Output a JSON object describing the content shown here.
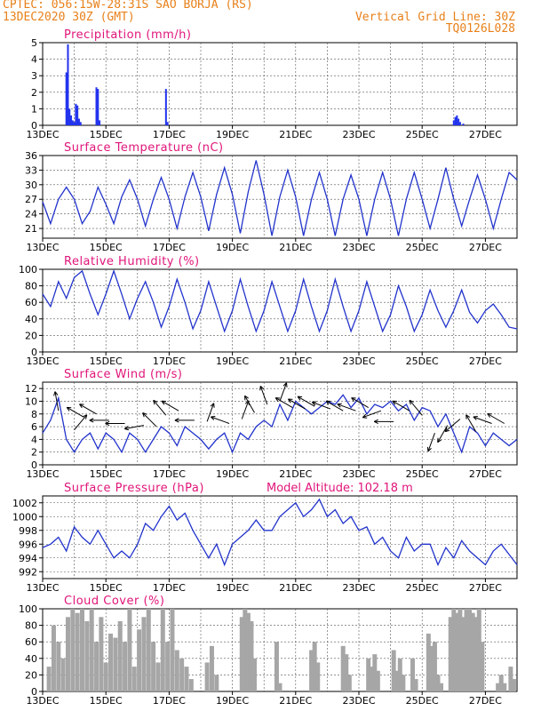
{
  "header": {
    "line1": "CPTEC:   056:15W-28:31S  SAO BORJA (RS)",
    "line2": "13DEC2020 30Z (GMT)",
    "grid_note": "Vertical Grid Line: 30Z",
    "code": "TQ0126L028"
  },
  "model_altitude": "Model Altitude: 102.18 m",
  "colors": {
    "header": "#e8801a",
    "title": "#e0157a",
    "line": "#2233cc",
    "bar": "#2233ee",
    "cloud": "#a6a6a6"
  },
  "chart_data": [
    {
      "type": "bar",
      "title": "Precipitation (mm/h)",
      "ylim": [
        0,
        5
      ],
      "yticks": [
        0,
        1,
        2,
        3,
        4,
        5
      ],
      "x_ticks": [
        "13DEC",
        "15DEC",
        "17DEC",
        "19DEC",
        "21DEC",
        "23DEC",
        "25DEC",
        "27DEC"
      ],
      "x_unit": "day offset from 13DEC",
      "x": [
        0.75,
        0.8,
        0.85,
        0.9,
        0.95,
        1.0,
        1.05,
        1.1,
        1.15,
        1.2,
        1.7,
        1.75,
        1.8,
        3.9,
        3.95,
        13.0,
        13.05,
        13.1,
        13.15,
        13.2,
        13.3
      ],
      "values": [
        3.2,
        4.9,
        1.0,
        0.6,
        0.3,
        0.2,
        1.3,
        1.2,
        0.4,
        0.2,
        2.3,
        2.2,
        0.3,
        2.2,
        0.2,
        0.3,
        0.5,
        0.6,
        0.4,
        0.2,
        0.1
      ]
    },
    {
      "type": "line",
      "title": "Surface Temperature (nC)",
      "ylim": [
        19,
        36
      ],
      "yticks": [
        21,
        24,
        27,
        30,
        33,
        36
      ],
      "x_ticks": [
        "13DEC",
        "15DEC",
        "17DEC",
        "19DEC",
        "21DEC",
        "23DEC",
        "25DEC",
        "27DEC"
      ],
      "x": [
        0,
        0.25,
        0.5,
        0.75,
        1,
        1.25,
        1.5,
        1.75,
        2,
        2.25,
        2.5,
        2.75,
        3,
        3.25,
        3.5,
        3.75,
        4,
        4.25,
        4.5,
        4.75,
        5,
        5.25,
        5.5,
        5.75,
        6,
        6.25,
        6.5,
        6.75,
        7,
        7.25,
        7.5,
        7.75,
        8,
        8.25,
        8.5,
        8.75,
        9,
        9.25,
        9.5,
        9.75,
        10,
        10.25,
        10.5,
        10.75,
        11,
        11.25,
        11.5,
        11.75,
        12,
        12.25,
        12.5,
        12.75,
        13,
        13.25,
        13.5,
        13.75,
        14,
        14.25,
        14.5,
        14.75,
        15
      ],
      "values": [
        26.5,
        22,
        27,
        29.5,
        27,
        22,
        24.5,
        29.5,
        26,
        22,
        27.5,
        31,
        27,
        21.5,
        27,
        31.5,
        27,
        21,
        27.5,
        32.5,
        27.5,
        20.5,
        28,
        33.5,
        28,
        20,
        28.5,
        35,
        28,
        19.5,
        27.5,
        33,
        27.5,
        19.5,
        27,
        32.5,
        27,
        19.5,
        27,
        32,
        27,
        19.5,
        27,
        32.5,
        27,
        19.5,
        27,
        32.5,
        27,
        21,
        27,
        33.5,
        27,
        21.5,
        27,
        32,
        27,
        21,
        27,
        32.5,
        31
      ]
    },
    {
      "type": "line",
      "title": "Relative Humidity (%)",
      "ylim": [
        0,
        100
      ],
      "yticks": [
        0,
        20,
        40,
        60,
        80,
        100
      ],
      "x_ticks": [
        "13DEC",
        "15DEC",
        "17DEC",
        "19DEC",
        "21DEC",
        "23DEC",
        "25DEC",
        "27DEC"
      ],
      "x": [
        0,
        0.25,
        0.5,
        0.75,
        1,
        1.25,
        1.5,
        1.75,
        2,
        2.25,
        2.5,
        2.75,
        3,
        3.25,
        3.5,
        3.75,
        4,
        4.25,
        4.5,
        4.75,
        5,
        5.25,
        5.5,
        5.75,
        6,
        6.25,
        6.5,
        6.75,
        7,
        7.25,
        7.5,
        7.75,
        8,
        8.25,
        8.5,
        8.75,
        9,
        9.25,
        9.5,
        9.75,
        10,
        10.25,
        10.5,
        10.75,
        11,
        11.25,
        11.5,
        11.75,
        12,
        12.25,
        12.5,
        12.75,
        13,
        13.25,
        13.5,
        13.75,
        14,
        14.25,
        14.5,
        14.75,
        15
      ],
      "values": [
        70,
        55,
        85,
        65,
        90,
        98,
        70,
        45,
        70,
        98,
        70,
        40,
        65,
        85,
        60,
        30,
        55,
        88,
        60,
        28,
        50,
        85,
        55,
        25,
        50,
        88,
        55,
        25,
        50,
        85,
        55,
        25,
        50,
        88,
        55,
        25,
        50,
        88,
        55,
        25,
        50,
        85,
        55,
        25,
        45,
        80,
        55,
        25,
        45,
        75,
        50,
        30,
        50,
        75,
        48,
        35,
        50,
        58,
        45,
        30,
        28
      ]
    },
    {
      "type": "line",
      "title": "Surface Wind (m/s)",
      "ylim": [
        0,
        13
      ],
      "yticks": [
        0,
        2,
        4,
        6,
        8,
        10,
        12
      ],
      "x_ticks": [
        "13DEC",
        "15DEC",
        "17DEC",
        "19DEC",
        "21DEC",
        "23DEC",
        "25DEC",
        "27DEC"
      ],
      "x": [
        0,
        0.25,
        0.5,
        0.75,
        1,
        1.25,
        1.5,
        1.75,
        2,
        2.25,
        2.5,
        2.75,
        3,
        3.25,
        3.5,
        3.75,
        4,
        4.25,
        4.5,
        4.75,
        5,
        5.25,
        5.5,
        5.75,
        6,
        6.25,
        6.5,
        6.75,
        7,
        7.25,
        7.5,
        7.75,
        8,
        8.25,
        8.5,
        8.75,
        9,
        9.25,
        9.5,
        9.75,
        10,
        10.25,
        10.5,
        10.75,
        11,
        11.25,
        11.5,
        11.75,
        12,
        12.25,
        12.5,
        12.75,
        13,
        13.25,
        13.5,
        13.75,
        14,
        14.25,
        14.5,
        14.75,
        15
      ],
      "values": [
        5,
        7,
        10.5,
        4,
        2,
        4,
        5,
        2.5,
        5,
        4,
        2,
        5,
        4,
        2,
        4,
        6,
        5,
        3,
        6,
        5,
        4,
        2.5,
        4,
        5,
        2,
        5,
        4,
        6,
        7,
        6,
        9.5,
        7,
        10,
        9,
        8,
        9,
        10,
        9.5,
        11,
        9,
        10.5,
        8,
        9.5,
        9,
        10,
        8.5,
        9.5,
        7,
        9,
        8.5,
        6,
        8,
        5,
        2,
        6,
        5,
        3,
        5,
        4,
        3,
        4
      ],
      "arrow_x": [
        0.5,
        1.0,
        1.3,
        1.7,
        2.1,
        2.6,
        3.2,
        3.6,
        3.9,
        4.3,
        4.8,
        5.2,
        5.9,
        6.3,
        6.7,
        7.1,
        7.5,
        7.9,
        8.3,
        8.6,
        9.1,
        9.5,
        9.9,
        10.3,
        10.7,
        11.1,
        11.6,
        12.0,
        12.4,
        12.8,
        13.2,
        13.7,
        14.2,
        14.6
      ],
      "arrow_speed": [
        8.5,
        5.5,
        7.5,
        8,
        7,
        6.5,
        6.2,
        6,
        7.8,
        8.5,
        7,
        6.8,
        6.5,
        7.2,
        8.2,
        9.5,
        10,
        9,
        8.8,
        9.2,
        8.8,
        8.5,
        8.5,
        9,
        8.5,
        6.8,
        8.5,
        7.8,
        5,
        6.2,
        7.2,
        5.2,
        6.5,
        6.5
      ],
      "arrow_dir": [
        350,
        40,
        300,
        300,
        270,
        270,
        260,
        315,
        320,
        300,
        270,
        20,
        290,
        20,
        330,
        340,
        20,
        300,
        300,
        300,
        290,
        300,
        290,
        300,
        250,
        270,
        300,
        320,
        200,
        210,
        230,
        330,
        290,
        300
      ]
    },
    {
      "type": "line",
      "title": "Surface Pressure (hPa)",
      "ylim": [
        991,
        1003
      ],
      "yticks": [
        992,
        994,
        996,
        998,
        1000,
        1002
      ],
      "x_ticks": [
        "13DEC",
        "15DEC",
        "17DEC",
        "19DEC",
        "21DEC",
        "23DEC",
        "25DEC",
        "27DEC"
      ],
      "x": [
        0,
        0.25,
        0.5,
        0.75,
        1,
        1.25,
        1.5,
        1.75,
        2,
        2.25,
        2.5,
        2.75,
        3,
        3.25,
        3.5,
        3.75,
        4,
        4.25,
        4.5,
        4.75,
        5,
        5.25,
        5.5,
        5.75,
        6,
        6.25,
        6.5,
        6.75,
        7,
        7.25,
        7.5,
        7.75,
        8,
        8.25,
        8.5,
        8.75,
        9,
        9.25,
        9.5,
        9.75,
        10,
        10.25,
        10.5,
        10.75,
        11,
        11.25,
        11.5,
        11.75,
        12,
        12.25,
        12.5,
        12.75,
        13,
        13.25,
        13.5,
        13.75,
        14,
        14.25,
        14.5,
        14.75,
        15
      ],
      "values": [
        995.5,
        996,
        997,
        995,
        998.5,
        997,
        996,
        998,
        996,
        994,
        995,
        994,
        996,
        999,
        998,
        1000,
        1001.5,
        999.5,
        1000.5,
        998,
        996,
        994,
        996,
        993,
        996,
        997,
        998,
        999.5,
        998,
        998,
        1000,
        1001,
        1002,
        1000,
        1001,
        1002.5,
        1000,
        1001,
        999,
        1000,
        998,
        998.5,
        996,
        997,
        995,
        994,
        997,
        995,
        996,
        996,
        993,
        995.5,
        994,
        996.5,
        995,
        994,
        993,
        995,
        996,
        994.5,
        993
      ]
    },
    {
      "type": "bar",
      "title": "Cloud Cover (%)",
      "ylim": [
        0,
        100
      ],
      "yticks": [
        0,
        20,
        40,
        60,
        80,
        100
      ],
      "x_ticks": [
        "13DEC",
        "15DEC",
        "17DEC",
        "19DEC",
        "21DEC",
        "23DEC",
        "25DEC",
        "27DEC"
      ],
      "x": [
        0.2,
        0.35,
        0.5,
        0.65,
        0.8,
        0.95,
        1.1,
        1.25,
        1.4,
        1.55,
        1.7,
        1.85,
        2.0,
        2.15,
        2.3,
        2.45,
        2.6,
        2.75,
        2.9,
        3.05,
        3.2,
        3.35,
        3.5,
        3.65,
        3.8,
        3.95,
        4.1,
        4.25,
        4.4,
        4.55,
        4.7,
        5.2,
        5.35,
        5.5,
        6.3,
        6.4,
        6.5,
        6.6,
        6.7,
        7.4,
        7.5,
        8.5,
        8.6,
        8.7,
        9.5,
        9.6,
        9.7,
        10.3,
        10.4,
        10.5,
        10.6,
        11.1,
        11.2,
        11.3,
        11.4,
        11.7,
        11.8,
        12.2,
        12.3,
        12.4,
        12.5,
        12.6,
        12.9,
        13.0,
        13.1,
        13.2,
        13.3,
        13.4,
        13.5,
        13.6,
        13.7,
        13.8,
        13.9,
        14.4,
        14.5,
        14.6,
        14.8,
        14.9
      ],
      "values": [
        30,
        80,
        60,
        40,
        90,
        100,
        95,
        100,
        85,
        100,
        60,
        90,
        35,
        70,
        65,
        85,
        60,
        100,
        30,
        75,
        90,
        100,
        60,
        35,
        100,
        60,
        100,
        50,
        40,
        30,
        15,
        35,
        55,
        20,
        90,
        100,
        95,
        85,
        40,
        60,
        10,
        50,
        60,
        35,
        55,
        45,
        20,
        40,
        30,
        45,
        25,
        50,
        25,
        40,
        20,
        40,
        15,
        70,
        55,
        60,
        20,
        10,
        90,
        100,
        95,
        100,
        90,
        100,
        100,
        95,
        90,
        100,
        60,
        10,
        20,
        10,
        30,
        15
      ]
    }
  ],
  "panel_labels": [
    "Precipitation (mm/h)",
    "Surface Temperature (nC)",
    "Relative Humidity (%)",
    "Surface Wind (m/s)",
    "Surface Pressure (hPa)",
    "Cloud Cover (%)"
  ]
}
